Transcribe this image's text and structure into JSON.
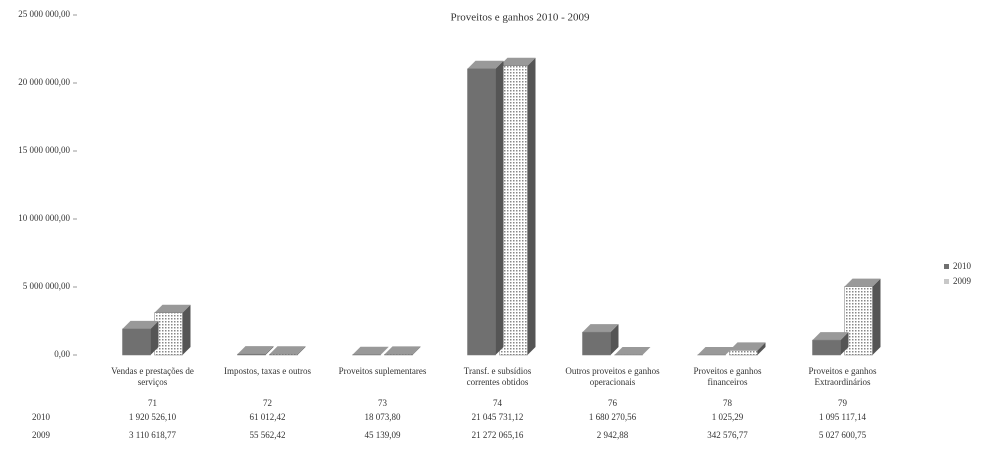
{
  "chart_data": {
    "type": "bar",
    "title": "Proveitos e ganhos 2010 - 2009",
    "categories": [
      "Vendas e prestações de serviços",
      "Impostos, taxas e outros",
      "Proveitos suplementares",
      "Transf. e subsídios correntes obtidos",
      "Outros proveitos e ganhos operacionais",
      "Proveitos e ganhos financeiros",
      "Proveitos e ganhos Extraordinários"
    ],
    "codes": [
      "71",
      "72",
      "73",
      "74",
      "76",
      "78",
      "79"
    ],
    "series": [
      {
        "name": "2010",
        "color": "#707070",
        "values": [
          1920526.1,
          61012.42,
          18073.8,
          21045731.12,
          1680270.56,
          1025.29,
          1095117.14
        ],
        "value_labels": [
          "1 920 526,10",
          "61 012,42",
          "18 073,80",
          "21 045 731,12",
          "1 680 270,56",
          "1 025,29",
          "1 095 117,14"
        ]
      },
      {
        "name": "2009",
        "color": "#c8c8c8",
        "values": [
          3110618.77,
          55562.42,
          45139.09,
          21272065.16,
          2942.88,
          342576.77,
          5027600.75
        ],
        "value_labels": [
          "3 110 618,77",
          "55 562,42",
          "45 139,09",
          "21 272 065,16",
          "2 942,88",
          "342 576,77",
          "5 027 600,75"
        ]
      }
    ],
    "ylim": [
      0,
      25000000
    ],
    "yticks": [
      {
        "value": 0,
        "label": "0,00"
      },
      {
        "value": 5000000,
        "label": "5 000 000,00"
      },
      {
        "value": 10000000,
        "label": "10 000 000,00"
      },
      {
        "value": 15000000,
        "label": "15 000 000,00"
      },
      {
        "value": 20000000,
        "label": "20 000 000,00"
      },
      {
        "value": 25000000,
        "label": "25 000 000,00"
      }
    ],
    "legend": "right"
  }
}
